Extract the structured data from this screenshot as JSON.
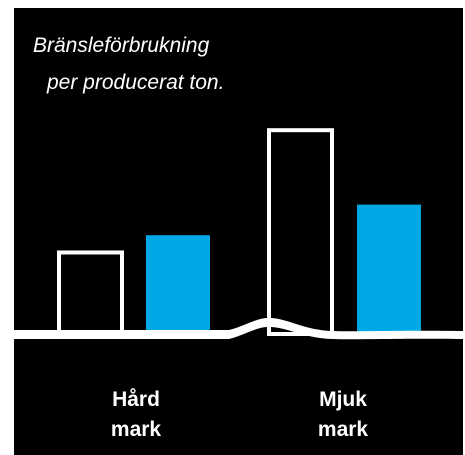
{
  "chart_data": {
    "type": "bar",
    "title_lines": [
      "Bränsleförbrukning",
      "per producerat ton."
    ],
    "categories": [
      {
        "label_lines": [
          "Hård",
          "mark"
        ]
      },
      {
        "label_lines": [
          "Mjuk",
          "mark"
        ]
      }
    ],
    "series": [
      {
        "style": "outline",
        "values": [
          80,
          200
        ]
      },
      {
        "style": "filled",
        "values": [
          95,
          125
        ]
      }
    ],
    "ylim": [
      0,
      210
    ],
    "grid": false,
    "colors": {
      "background": "#000000",
      "outline_bar": "#ffffff",
      "filled_bar": "#00a8e6",
      "ground": "#ffffff",
      "text": "#ffffff"
    }
  }
}
